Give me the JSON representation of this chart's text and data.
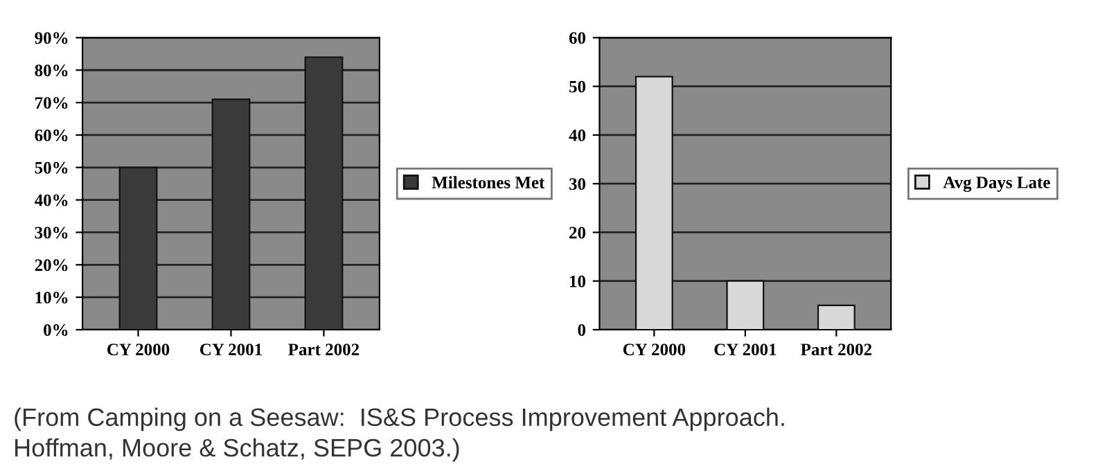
{
  "chart_data": [
    {
      "type": "bar",
      "categories": [
        "CY 2000",
        "CY 2001",
        "Part 2002"
      ],
      "series": [
        {
          "name": "Milestones Met",
          "color": "#3a3a3a",
          "values": [
            50,
            71,
            84
          ]
        }
      ],
      "ylim": [
        0,
        90
      ],
      "yticks": [
        {
          "value": 0,
          "label": "0%"
        },
        {
          "value": 10,
          "label": "10%"
        },
        {
          "value": 20,
          "label": "20%"
        },
        {
          "value": 30,
          "label": "30%"
        },
        {
          "value": 40,
          "label": "40%"
        },
        {
          "value": 50,
          "label": "50%"
        },
        {
          "value": 60,
          "label": "60%"
        },
        {
          "value": 70,
          "label": "70%"
        },
        {
          "value": 80,
          "label": "80%"
        },
        {
          "value": 90,
          "label": "90%"
        }
      ],
      "grid": "y",
      "legend": "right",
      "annotations": [
        "(From Camping on a Seesaw:  IS&S Process Improvement Approach.\nHoffman, Moore & Schatz, SEPG 2003.)"
      ]
    },
    {
      "type": "bar",
      "categories": [
        "CY 2000",
        "CY 2001",
        "Part 2002"
      ],
      "series": [
        {
          "name": "Avg Days Late",
          "color": "#d8d8d8",
          "values": [
            52,
            10,
            5
          ]
        }
      ],
      "ylim": [
        0,
        60
      ],
      "yticks": [
        0,
        10,
        20,
        30,
        40,
        50,
        60
      ],
      "grid": "y",
      "legend": "right"
    }
  ]
}
